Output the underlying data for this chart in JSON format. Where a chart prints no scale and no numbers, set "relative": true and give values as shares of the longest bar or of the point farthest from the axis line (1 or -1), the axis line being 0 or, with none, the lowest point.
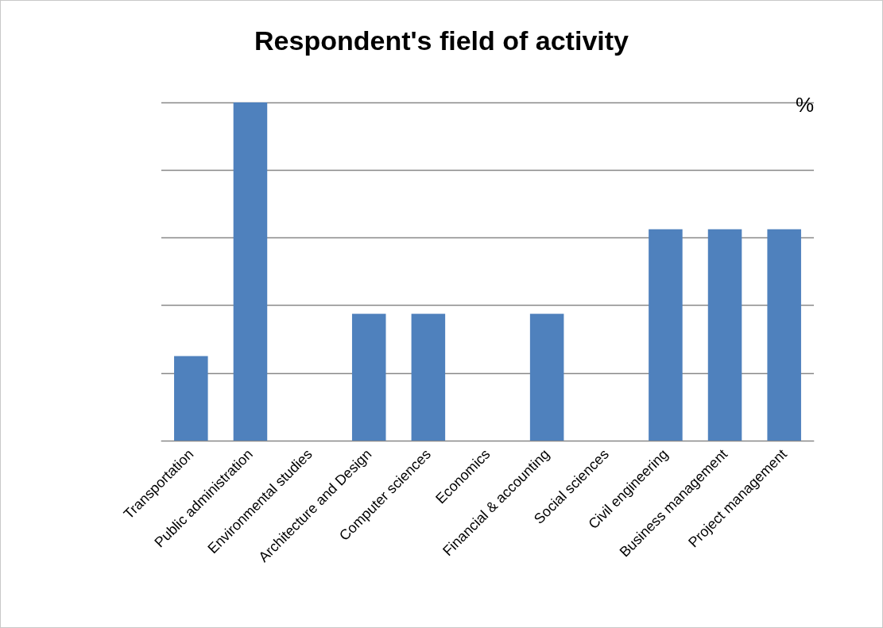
{
  "chart_data": {
    "type": "bar",
    "title": "Respondent's field of activity",
    "ylabel": "%",
    "relative": true,
    "grid": "y",
    "categories": [
      "Transportation",
      "Public administration",
      "Environmental studies",
      "Architecture and Design",
      "Computer sciences",
      "Economics",
      "Financial & accounting",
      "Social sciences",
      "Civil engineering",
      "Business management",
      "Project management"
    ],
    "values": [
      0.25,
      1,
      0,
      0.375,
      0.375,
      0,
      0.375,
      0,
      0.625,
      0.625,
      0.625
    ],
    "color": "#4f81bd"
  }
}
